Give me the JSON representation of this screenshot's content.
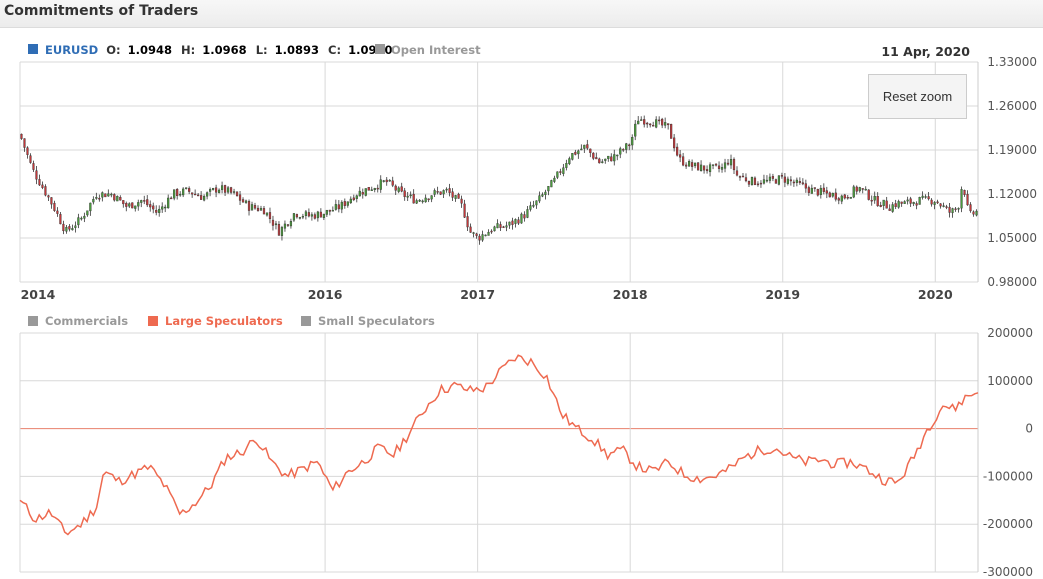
{
  "page_title": "Commitments of Traders",
  "price_legend": {
    "symbol": "EURUSD",
    "o_label": "O:",
    "o_value": "1.0948",
    "h_label": "H:",
    "h_value": "1.0968",
    "l_label": "L:",
    "l_value": "1.0893",
    "c_label": "C:",
    "c_value": "1.0930",
    "open_interest": "Open Interest"
  },
  "date_label": "11 Apr, 2020",
  "reset_zoom": "Reset zoom",
  "position_legend": [
    "Commercials",
    "Large Speculators",
    "Small Speculators"
  ],
  "colors": {
    "up": "#4a9a3c",
    "down": "#c2383b",
    "large_speculators": "#ee6a50",
    "brand": "#2f6db5",
    "inactive": "#999999"
  },
  "chart_data": [
    {
      "type": "candlestick",
      "title": "",
      "series": [
        {
          "name": "EURUSD"
        }
      ],
      "x_ticks": [
        "2014",
        "2016",
        "2017",
        "2018",
        "2019",
        "2020"
      ],
      "x_tick_values": [
        2014.0,
        2016.0,
        2017.0,
        2018.0,
        2019.0,
        2020.0
      ],
      "y_ticks": [
        "1.33000",
        "1.26000",
        "1.19000",
        "1.12000",
        "1.05000",
        "0.98000"
      ],
      "xlim": [
        2014.0,
        2020.28
      ],
      "ylim": [
        0.98,
        1.33
      ],
      "grid": true,
      "legend": "top-left",
      "close_path": [
        [
          2014.0,
          1.215
        ],
        [
          2014.08,
          1.16
        ],
        [
          2014.15,
          1.13
        ],
        [
          2014.22,
          1.1
        ],
        [
          2014.3,
          1.06
        ],
        [
          2014.4,
          1.08
        ],
        [
          2014.5,
          1.12
        ],
        [
          2014.6,
          1.12
        ],
        [
          2014.7,
          1.1
        ],
        [
          2014.8,
          1.11
        ],
        [
          2014.9,
          1.09
        ],
        [
          2015.0,
          1.12
        ],
        [
          2015.1,
          1.125
        ],
        [
          2015.2,
          1.115
        ],
        [
          2015.3,
          1.13
        ],
        [
          2015.4,
          1.12
        ],
        [
          2015.5,
          1.1
        ],
        [
          2015.6,
          1.095
        ],
        [
          2015.7,
          1.06
        ],
        [
          2015.8,
          1.09
        ],
        [
          2015.9,
          1.085
        ],
        [
          2016.0,
          1.09
        ],
        [
          2016.1,
          1.1
        ],
        [
          2016.2,
          1.12
        ],
        [
          2016.3,
          1.13
        ],
        [
          2016.4,
          1.14
        ],
        [
          2016.5,
          1.12
        ],
        [
          2016.6,
          1.11
        ],
        [
          2016.7,
          1.12
        ],
        [
          2016.8,
          1.125
        ],
        [
          2016.9,
          1.1
        ],
        [
          2016.95,
          1.06
        ],
        [
          2017.0,
          1.05
        ],
        [
          2017.1,
          1.065
        ],
        [
          2017.2,
          1.07
        ],
        [
          2017.3,
          1.085
        ],
        [
          2017.4,
          1.11
        ],
        [
          2017.5,
          1.14
        ],
        [
          2017.6,
          1.18
        ],
        [
          2017.7,
          1.195
        ],
        [
          2017.8,
          1.17
        ],
        [
          2017.9,
          1.18
        ],
        [
          2018.0,
          1.2
        ],
        [
          2018.05,
          1.24
        ],
        [
          2018.15,
          1.235
        ],
        [
          2018.25,
          1.225
        ],
        [
          2018.32,
          1.175
        ],
        [
          2018.4,
          1.165
        ],
        [
          2018.5,
          1.16
        ],
        [
          2018.6,
          1.16
        ],
        [
          2018.65,
          1.175
        ],
        [
          2018.7,
          1.15
        ],
        [
          2018.8,
          1.14
        ],
        [
          2018.9,
          1.14
        ],
        [
          2019.0,
          1.145
        ],
        [
          2019.1,
          1.135
        ],
        [
          2019.2,
          1.125
        ],
        [
          2019.3,
          1.12
        ],
        [
          2019.4,
          1.115
        ],
        [
          2019.5,
          1.13
        ],
        [
          2019.55,
          1.12
        ],
        [
          2019.6,
          1.11
        ],
        [
          2019.7,
          1.1
        ],
        [
          2019.75,
          1.105
        ],
        [
          2019.8,
          1.105
        ],
        [
          2019.9,
          1.11
        ],
        [
          2020.0,
          1.11
        ],
        [
          2020.1,
          1.09
        ],
        [
          2020.15,
          1.1
        ],
        [
          2020.18,
          1.14
        ],
        [
          2020.22,
          1.085
        ],
        [
          2020.28,
          1.093
        ]
      ]
    },
    {
      "type": "line",
      "title": "",
      "series": [
        {
          "name": "Large Speculators"
        }
      ],
      "y_ticks": [
        "200000",
        "100000",
        "0",
        "-100000",
        "-200000",
        "-300000"
      ],
      "xlim": [
        2014.0,
        2020.28
      ],
      "ylim": [
        -300000,
        200000
      ],
      "grid": true,
      "legend": "top-left",
      "x": [
        2014.0,
        2014.1,
        2014.2,
        2014.3,
        2014.4,
        2014.5,
        2014.55,
        2014.65,
        2014.75,
        2014.85,
        2014.95,
        2015.05,
        2015.15,
        2015.25,
        2015.35,
        2015.45,
        2015.55,
        2015.65,
        2015.75,
        2015.85,
        2015.95,
        2016.05,
        2016.15,
        2016.25,
        2016.35,
        2016.45,
        2016.55,
        2016.65,
        2016.75,
        2016.85,
        2016.95,
        2017.05,
        2017.15,
        2017.25,
        2017.35,
        2017.45,
        2017.55,
        2017.65,
        2017.75,
        2017.85,
        2017.95,
        2018.05,
        2018.15,
        2018.25,
        2018.35,
        2018.45,
        2018.55,
        2018.65,
        2018.75,
        2018.85,
        2018.95,
        2019.05,
        2019.15,
        2019.25,
        2019.35,
        2019.45,
        2019.55,
        2019.65,
        2019.75,
        2019.85,
        2019.95,
        2020.05,
        2020.12,
        2020.18,
        2020.22,
        2020.28
      ],
      "values": [
        -150000,
        -190000,
        -175000,
        -220000,
        -200000,
        -165000,
        -90000,
        -110000,
        -95000,
        -80000,
        -120000,
        -180000,
        -155000,
        -120000,
        -60000,
        -50000,
        -20000,
        -70000,
        -100000,
        -85000,
        -70000,
        -130000,
        -90000,
        -70000,
        -40000,
        -55000,
        -10000,
        40000,
        80000,
        90000,
        80000,
        85000,
        120000,
        150000,
        140000,
        110000,
        30000,
        0,
        -20000,
        -55000,
        -45000,
        -80000,
        -90000,
        -70000,
        -95000,
        -105000,
        -100000,
        -85000,
        -60000,
        -45000,
        -40000,
        -60000,
        -70000,
        -65000,
        -75000,
        -70000,
        -85000,
        -105000,
        -115000,
        -65000,
        0,
        50000,
        40000,
        60000,
        70000,
        75000
      ]
    }
  ]
}
